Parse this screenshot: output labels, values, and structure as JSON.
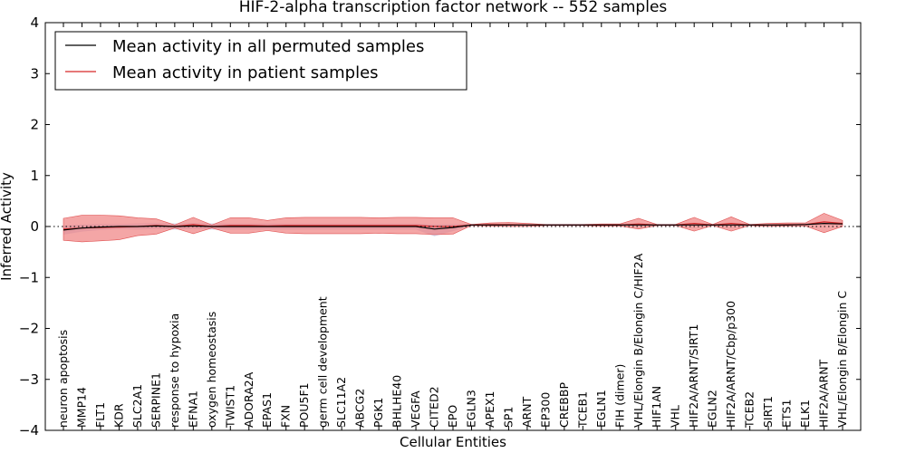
{
  "chart_data": {
    "type": "line",
    "title": "HIF-2-alpha transcription factor network -- 552 samples",
    "xlabel": "Cellular Entities",
    "ylabel": "Inferred Activity",
    "ylim": [
      -4,
      4
    ],
    "yticks": [
      -4,
      -3,
      -2,
      -1,
      0,
      1,
      2,
      3,
      4
    ],
    "ytick_labels": [
      "−4",
      "−3",
      "−2",
      "−1",
      "0",
      "1",
      "2",
      "3",
      "4"
    ],
    "grid": false,
    "legend_position": "top-left",
    "categories": [
      "neuron apoptosis",
      "MMP14",
      "FLT1",
      "KDR",
      "SLC2A1",
      "SERPINE1",
      "response to hypoxia",
      "EFNA1",
      "oxygen homeostasis",
      "TWIST1",
      "ADORA2A",
      "EPAS1",
      "FXN",
      "POU5F1",
      "germ cell development",
      "SLC11A2",
      "ABCG2",
      "PGK1",
      "BHLHE40",
      "VEGFA",
      "CITED2",
      "EPO",
      "EGLN3",
      "APEX1",
      "SP1",
      "ARNT",
      "EP300",
      "CREBBP",
      "TCEB1",
      "EGLN1",
      "FIH (dimer)",
      "VHL/Elongin B/Elongin C/HIF2A",
      "HIF1AN",
      "VHL",
      "HIF2A/ARNT/SIRT1",
      "EGLN2",
      "HIF2A/ARNT/Cbp/p300",
      "TCEB2",
      "SIRT1",
      "ETS1",
      "ELK1",
      "HIF2A/ARNT",
      "VHL/Elongin B/Elongin C"
    ],
    "series": [
      {
        "name": "Mean activity in all permuted samples",
        "color": "#000000",
        "values": [
          -0.07,
          -0.03,
          -0.01,
          0.0,
          0.0,
          0.01,
          0.0,
          0.01,
          0.0,
          0.0,
          0.0,
          0.0,
          0.0,
          0.0,
          0.0,
          0.0,
          0.0,
          0.0,
          0.0,
          0.0,
          -0.05,
          -0.02,
          0.03,
          0.03,
          0.03,
          0.03,
          0.03,
          0.03,
          0.03,
          0.03,
          0.03,
          0.03,
          0.03,
          0.03,
          0.03,
          0.03,
          0.03,
          0.03,
          0.03,
          0.03,
          0.04,
          0.06,
          0.05
        ],
        "band_upper": [
          0.02,
          0.04,
          0.05,
          0.05,
          0.06,
          0.07,
          0.06,
          0.07,
          0.06,
          0.06,
          0.06,
          0.06,
          0.06,
          0.06,
          0.06,
          0.06,
          0.06,
          0.06,
          0.06,
          0.06,
          0.04,
          0.05,
          0.05,
          0.05,
          0.05,
          0.05,
          0.05,
          0.05,
          0.05,
          0.05,
          0.05,
          0.05,
          0.05,
          0.05,
          0.05,
          0.05,
          0.05,
          0.05,
          0.05,
          0.05,
          0.06,
          0.08,
          0.07
        ],
        "band_lower": [
          -0.16,
          -0.1,
          -0.07,
          -0.05,
          -0.06,
          -0.05,
          -0.06,
          -0.05,
          -0.06,
          -0.06,
          -0.06,
          -0.06,
          -0.06,
          -0.06,
          -0.06,
          -0.06,
          -0.06,
          -0.06,
          -0.06,
          -0.06,
          -0.19,
          -0.09,
          0.01,
          0.01,
          0.01,
          0.01,
          0.01,
          0.01,
          0.01,
          0.01,
          0.01,
          0.01,
          0.01,
          0.01,
          0.01,
          0.01,
          0.01,
          0.01,
          0.01,
          0.01,
          0.02,
          0.04,
          0.03
        ]
      },
      {
        "name": "Mean activity in patient samples",
        "color": "#d62728",
        "values": [
          -0.05,
          -0.03,
          -0.02,
          -0.01,
          0.0,
          0.02,
          0.0,
          0.04,
          0.0,
          0.02,
          0.02,
          0.01,
          0.02,
          0.02,
          0.02,
          0.02,
          0.02,
          0.02,
          0.02,
          0.02,
          0.0,
          0.0,
          0.03,
          0.04,
          0.04,
          0.03,
          0.03,
          0.03,
          0.03,
          0.03,
          0.03,
          0.05,
          0.03,
          0.03,
          0.06,
          0.03,
          0.06,
          0.03,
          0.03,
          0.04,
          0.04,
          0.09,
          0.06
        ],
        "band_upper": [
          0.16,
          0.22,
          0.22,
          0.21,
          0.17,
          0.15,
          0.03,
          0.18,
          0.03,
          0.17,
          0.17,
          0.12,
          0.17,
          0.18,
          0.18,
          0.18,
          0.18,
          0.17,
          0.18,
          0.18,
          0.17,
          0.17,
          0.04,
          0.07,
          0.08,
          0.06,
          0.04,
          0.04,
          0.04,
          0.05,
          0.05,
          0.16,
          0.04,
          0.04,
          0.18,
          0.04,
          0.19,
          0.04,
          0.06,
          0.07,
          0.07,
          0.26,
          0.12
        ],
        "band_lower": [
          -0.27,
          -0.3,
          -0.28,
          -0.26,
          -0.18,
          -0.15,
          -0.03,
          -0.14,
          -0.03,
          -0.13,
          -0.13,
          -0.08,
          -0.13,
          -0.14,
          -0.14,
          -0.14,
          -0.14,
          -0.13,
          -0.14,
          -0.14,
          -0.16,
          -0.15,
          0.02,
          0.01,
          0.0,
          0.0,
          0.02,
          0.02,
          0.02,
          0.01,
          0.01,
          -0.05,
          0.02,
          0.02,
          -0.09,
          0.02,
          -0.09,
          0.02,
          0.0,
          0.01,
          0.01,
          -0.12,
          0.0
        ]
      }
    ],
    "reference_line": {
      "y": 0,
      "style": "dotted"
    }
  }
}
